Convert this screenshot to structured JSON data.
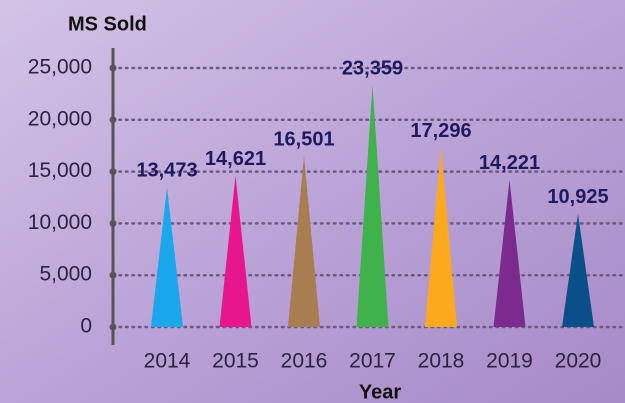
{
  "chart_data": {
    "type": "bar",
    "title": "MS Sold",
    "x_label": "Year",
    "categories": [
      "2014",
      "2015",
      "2016",
      "2017",
      "2018",
      "2019",
      "2020"
    ],
    "values": [
      13473,
      14621,
      16501,
      23359,
      17296,
      14221,
      10925
    ],
    "value_labels": [
      "13,473",
      "14,621",
      "16,501",
      "23,359",
      "17,296",
      "14,221",
      "10,925"
    ],
    "colors": [
      "#1aa7ec",
      "#e8168c",
      "#a87d50",
      "#3fb24b",
      "#fca91e",
      "#7c2a8e",
      "#0a4f8a"
    ],
    "ylim": [
      0,
      25000
    ],
    "yticks": [
      0,
      {
        "value": 5000,
        "label": "5,000"
      },
      {
        "value": 10000,
        "label": "10,000"
      },
      {
        "value": 15000,
        "label": "15,000"
      },
      {
        "value": 20000,
        "label": "20,000"
      },
      {
        "value": 25000,
        "label": "25,000"
      }
    ],
    "grid": true
  }
}
